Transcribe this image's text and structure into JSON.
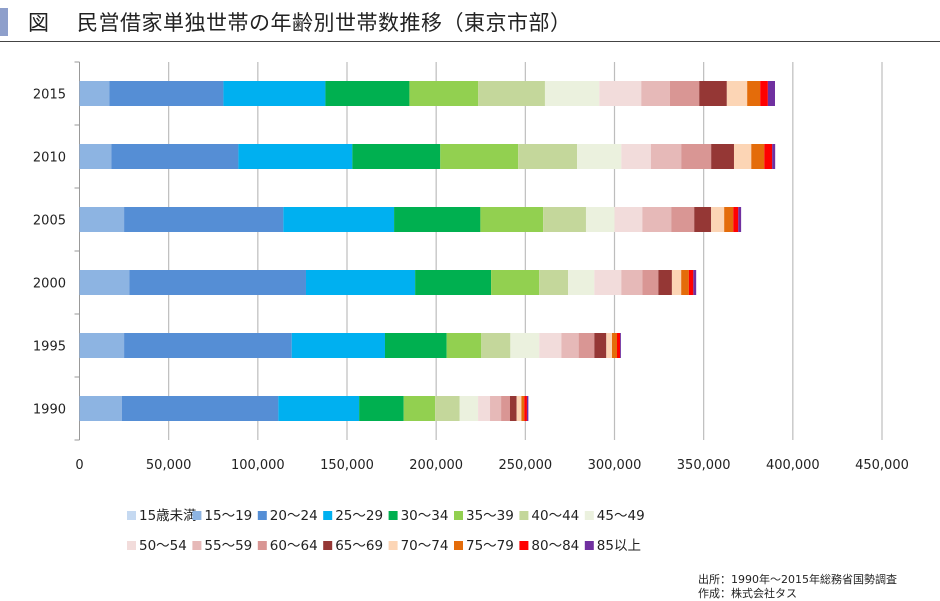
{
  "header": {
    "figure_label": "図",
    "title": "民営借家単独世帯の年齢別世帯数推移（東京市部）",
    "accent_color": "#8e9fcb"
  },
  "chart_data": {
    "type": "bar",
    "orientation": "horizontal",
    "stacked": true,
    "title": "民営借家単独世帯の年齢別世帯数推移（東京市部）",
    "xlabel": "",
    "ylabel": "",
    "xlim": [
      0,
      450000
    ],
    "x_ticks": [
      0,
      50000,
      100000,
      150000,
      200000,
      250000,
      300000,
      350000,
      400000,
      450000
    ],
    "x_tick_labels": [
      "0",
      "50,000",
      "100,000",
      "150,000",
      "200,000",
      "250,000",
      "300,000",
      "350,000",
      "400,000",
      "450,000"
    ],
    "grid": "vertical",
    "legend_position": "bottom",
    "categories": [
      "2015",
      "2010",
      "2005",
      "2000",
      "1995",
      "1990"
    ],
    "series": [
      {
        "name": "15歳未満",
        "color": "#c5d9f1",
        "values": [
          0,
          0,
          0,
          0,
          0,
          0
        ]
      },
      {
        "name": "15～19",
        "color": "#8db4e2",
        "values": [
          16800,
          17900,
          25000,
          28000,
          25000,
          23700
        ]
      },
      {
        "name": "20～24",
        "color": "#558ed5",
        "values": [
          63900,
          71200,
          89300,
          99000,
          94000,
          87800
        ]
      },
      {
        "name": "25～29",
        "color": "#00b0f0",
        "values": [
          57200,
          63900,
          62100,
          61200,
          52300,
          45300
        ]
      },
      {
        "name": "30～34",
        "color": "#00b050",
        "values": [
          47100,
          49300,
          48400,
          42600,
          34600,
          25000
        ]
      },
      {
        "name": "35～39",
        "color": "#92d050",
        "values": [
          38600,
          43700,
          35200,
          27000,
          19400,
          17600
        ]
      },
      {
        "name": "40～44",
        "color": "#c4d79b",
        "values": [
          37400,
          33000,
          24000,
          16200,
          16300,
          13800
        ]
      },
      {
        "name": "45～49",
        "color": "#ebf1de",
        "values": [
          30500,
          24800,
          16000,
          14700,
          16200,
          10300
        ]
      },
      {
        "name": "50～54",
        "color": "#f2dcdb",
        "values": [
          23500,
          16600,
          15600,
          15100,
          12400,
          6700
        ]
      },
      {
        "name": "55～59",
        "color": "#e6b9b8",
        "values": [
          16000,
          17000,
          16200,
          11800,
          9700,
          6200
        ]
      },
      {
        "name": "60～64",
        "color": "#d99694",
        "values": [
          16500,
          16800,
          12900,
          9000,
          8800,
          5000
        ]
      },
      {
        "name": "65～69",
        "color": "#953735",
        "values": [
          15500,
          12800,
          9500,
          7600,
          6700,
          3700
        ]
      },
      {
        "name": "70～74",
        "color": "#fcd5b5",
        "values": [
          11400,
          9700,
          7300,
          5200,
          3200,
          2700
        ]
      },
      {
        "name": "75～79",
        "color": "#e46c0a",
        "values": [
          7300,
          7300,
          5100,
          4300,
          2800,
          1600
        ]
      },
      {
        "name": "80～84",
        "color": "#ff0000",
        "values": [
          4300,
          4400,
          2800,
          2500,
          1700,
          1500
        ]
      },
      {
        "name": "85以上",
        "color": "#7030a0",
        "values": [
          4000,
          1700,
          1600,
          1600,
          500,
          800
        ]
      }
    ]
  },
  "footer": {
    "source": "出所：1990年～2015年総務省国勢調査",
    "credit": "作成：株式会社タス"
  }
}
